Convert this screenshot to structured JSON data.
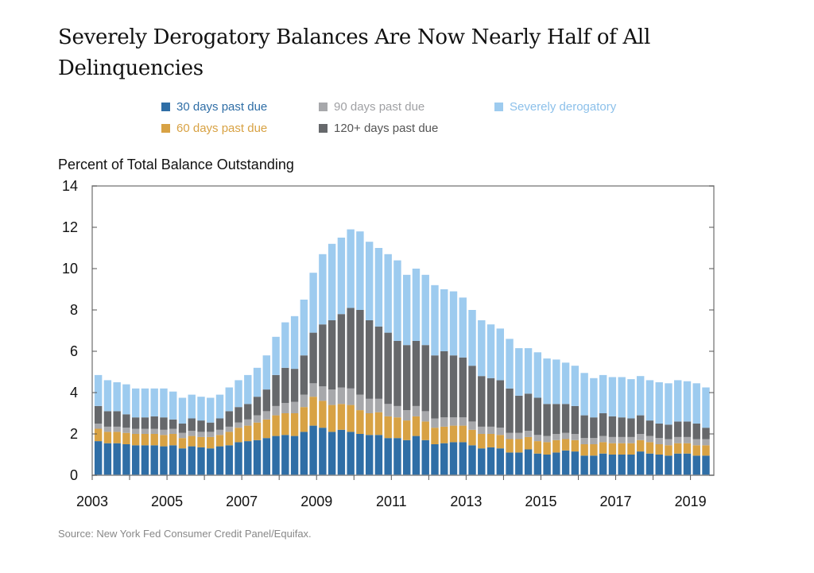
{
  "chart_data": {
    "type": "bar",
    "stacked": true,
    "title": "Severely Derogatory Balances Are Now Nearly Half of All Delinquencies",
    "ylabel": "Percent of Total Balance Outstanding",
    "xlabel": "",
    "ylim": [
      0,
      14
    ],
    "y_ticks": [
      "0",
      "2",
      "4",
      "6",
      "8",
      "10",
      "12",
      "14"
    ],
    "x_ticks": [
      "2003",
      "2005",
      "2007",
      "2009",
      "2011",
      "2013",
      "2015",
      "2017",
      "2019"
    ],
    "grid": false,
    "legend_placement": "top",
    "source": "Source: New York Fed Consumer Credit Panel/Equifax.",
    "categories": [
      "2003Q1",
      "2003Q2",
      "2003Q3",
      "2003Q4",
      "2004Q1",
      "2004Q2",
      "2004Q3",
      "2004Q4",
      "2005Q1",
      "2005Q2",
      "2005Q3",
      "2005Q4",
      "2006Q1",
      "2006Q2",
      "2006Q3",
      "2006Q4",
      "2007Q1",
      "2007Q2",
      "2007Q3",
      "2007Q4",
      "2008Q1",
      "2008Q2",
      "2008Q3",
      "2008Q4",
      "2009Q1",
      "2009Q2",
      "2009Q3",
      "2009Q4",
      "2010Q1",
      "2010Q2",
      "2010Q3",
      "2010Q4",
      "2011Q1",
      "2011Q2",
      "2011Q3",
      "2011Q4",
      "2012Q1",
      "2012Q2",
      "2012Q3",
      "2012Q4",
      "2013Q1",
      "2013Q2",
      "2013Q3",
      "2013Q4",
      "2014Q1",
      "2014Q2",
      "2014Q3",
      "2014Q4",
      "2015Q1",
      "2015Q2",
      "2015Q3",
      "2015Q4",
      "2016Q1",
      "2016Q2",
      "2016Q3",
      "2016Q4",
      "2017Q1",
      "2017Q2",
      "2017Q3",
      "2017Q4",
      "2018Q1",
      "2018Q2",
      "2018Q3",
      "2018Q4",
      "2019Q1",
      "2019Q2"
    ],
    "series": [
      {
        "name": "30 days past due",
        "color": "#2f6ea6",
        "values": [
          1.65,
          1.55,
          1.55,
          1.5,
          1.45,
          1.45,
          1.45,
          1.4,
          1.45,
          1.3,
          1.4,
          1.35,
          1.3,
          1.4,
          1.45,
          1.6,
          1.65,
          1.7,
          1.8,
          1.9,
          1.95,
          1.9,
          2.1,
          2.4,
          2.3,
          2.1,
          2.2,
          2.1,
          2.0,
          1.95,
          1.95,
          1.8,
          1.8,
          1.7,
          1.9,
          1.7,
          1.5,
          1.55,
          1.6,
          1.6,
          1.45,
          1.3,
          1.35,
          1.3,
          1.1,
          1.1,
          1.25,
          1.05,
          1.0,
          1.1,
          1.2,
          1.15,
          0.95,
          0.95,
          1.05,
          1.0,
          1.0,
          1.0,
          1.15,
          1.05,
          1.0,
          0.95,
          1.05,
          1.05,
          0.95,
          0.95
        ]
      },
      {
        "name": "60 days past due",
        "color": "#d8a244",
        "values": [
          0.6,
          0.55,
          0.55,
          0.55,
          0.55,
          0.55,
          0.55,
          0.55,
          0.55,
          0.5,
          0.5,
          0.5,
          0.55,
          0.55,
          0.65,
          0.7,
          0.75,
          0.85,
          0.9,
          1.0,
          1.05,
          1.1,
          1.2,
          1.4,
          1.3,
          1.3,
          1.25,
          1.3,
          1.15,
          1.05,
          1.1,
          1.05,
          1.0,
          0.95,
          0.95,
          0.9,
          0.8,
          0.8,
          0.8,
          0.8,
          0.75,
          0.7,
          0.65,
          0.65,
          0.65,
          0.65,
          0.6,
          0.6,
          0.6,
          0.6,
          0.55,
          0.55,
          0.55,
          0.55,
          0.55,
          0.55,
          0.55,
          0.55,
          0.55,
          0.55,
          0.5,
          0.5,
          0.5,
          0.5,
          0.5,
          0.5
        ]
      },
      {
        "name": "90 days past due",
        "color": "#a7a8ab",
        "values": [
          0.25,
          0.25,
          0.25,
          0.25,
          0.25,
          0.25,
          0.25,
          0.25,
          0.25,
          0.25,
          0.25,
          0.25,
          0.25,
          0.25,
          0.25,
          0.25,
          0.3,
          0.35,
          0.4,
          0.45,
          0.5,
          0.55,
          0.6,
          0.65,
          0.7,
          0.75,
          0.8,
          0.8,
          0.75,
          0.7,
          0.65,
          0.6,
          0.55,
          0.5,
          0.5,
          0.5,
          0.45,
          0.45,
          0.4,
          0.4,
          0.4,
          0.35,
          0.35,
          0.35,
          0.3,
          0.3,
          0.3,
          0.3,
          0.3,
          0.3,
          0.3,
          0.3,
          0.3,
          0.3,
          0.3,
          0.3,
          0.3,
          0.3,
          0.3,
          0.3,
          0.3,
          0.3,
          0.3,
          0.3,
          0.3,
          0.3
        ]
      },
      {
        "name": "120+ days past due",
        "color": "#66686b",
        "values": [
          0.85,
          0.75,
          0.75,
          0.65,
          0.55,
          0.55,
          0.6,
          0.6,
          0.45,
          0.45,
          0.6,
          0.55,
          0.45,
          0.55,
          0.75,
          0.75,
          0.75,
          0.9,
          1.05,
          1.5,
          1.7,
          1.6,
          1.9,
          2.45,
          3.0,
          3.35,
          3.55,
          3.9,
          4.1,
          3.8,
          3.5,
          3.45,
          3.15,
          3.15,
          3.15,
          3.2,
          3.05,
          3.2,
          3.0,
          2.9,
          2.7,
          2.45,
          2.35,
          2.3,
          2.15,
          1.8,
          1.8,
          1.8,
          1.55,
          1.45,
          1.4,
          1.35,
          1.1,
          1.0,
          1.1,
          1.0,
          0.95,
          0.9,
          0.9,
          0.75,
          0.7,
          0.7,
          0.75,
          0.75,
          0.75,
          0.55
        ]
      },
      {
        "name": "Severely derogatory",
        "color": "#9dcbef",
        "values": [
          1.5,
          1.5,
          1.4,
          1.45,
          1.4,
          1.4,
          1.35,
          1.4,
          1.35,
          1.25,
          1.15,
          1.15,
          1.2,
          1.15,
          1.15,
          1.3,
          1.4,
          1.4,
          1.65,
          1.85,
          2.2,
          2.55,
          2.7,
          2.9,
          3.4,
          3.7,
          3.7,
          3.8,
          3.8,
          3.8,
          3.8,
          3.8,
          3.9,
          3.4,
          3.5,
          3.4,
          3.4,
          3.0,
          3.1,
          2.9,
          2.7,
          2.7,
          2.6,
          2.5,
          2.4,
          2.3,
          2.2,
          2.2,
          2.2,
          2.15,
          2.0,
          1.95,
          2.05,
          1.9,
          1.85,
          1.9,
          1.95,
          1.9,
          1.9,
          1.95,
          2.0,
          2.0,
          2.0,
          1.95,
          1.95,
          1.95
        ]
      }
    ]
  }
}
